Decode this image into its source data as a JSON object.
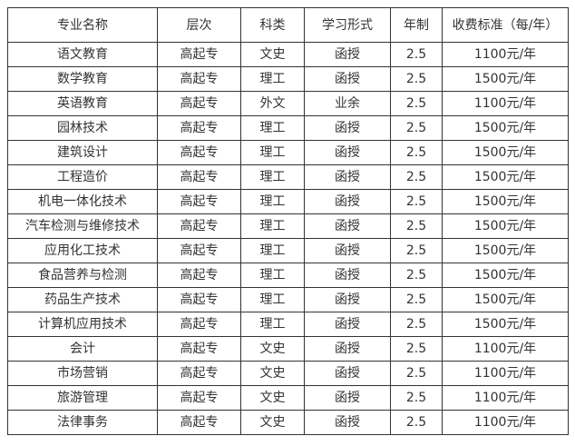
{
  "colors": {
    "border": "#333333",
    "text": "#333333",
    "background": "#ffffff"
  },
  "table": {
    "headers": [
      "专业名称",
      "层次",
      "科类",
      "学习形式",
      "年制",
      "收费标准（每/年）"
    ],
    "rows": [
      [
        "语文教育",
        "高起专",
        "文史",
        "函授",
        "2.5",
        "1100元/年"
      ],
      [
        "数学教育",
        "高起专",
        "理工",
        "函授",
        "2.5",
        "1500元/年"
      ],
      [
        "英语教育",
        "高起专",
        "外文",
        "业余",
        "2.5",
        "1100元/年"
      ],
      [
        "园林技术",
        "高起专",
        "理工",
        "函授",
        "2.5",
        "1500元/年"
      ],
      [
        "建筑设计",
        "高起专",
        "理工",
        "函授",
        "2.5",
        "1500元/年"
      ],
      [
        "工程造价",
        "高起专",
        "理工",
        "函授",
        "2.5",
        "1500元/年"
      ],
      [
        "机电一体化技术",
        "高起专",
        "理工",
        "函授",
        "2.5",
        "1500元/年"
      ],
      [
        "汽车检测与维修技术",
        "高起专",
        "理工",
        "函授",
        "2.5",
        "1500元/年"
      ],
      [
        "应用化工技术",
        "高起专",
        "理工",
        "函授",
        "2.5",
        "1500元/年"
      ],
      [
        "食品营养与检测",
        "高起专",
        "理工",
        "函授",
        "2.5",
        "1500元/年"
      ],
      [
        "药品生产技术",
        "高起专",
        "理工",
        "函授",
        "2.5",
        "1500元/年"
      ],
      [
        "计算机应用技术",
        "高起专",
        "理工",
        "函授",
        "2.5",
        "1500元/年"
      ],
      [
        "会计",
        "高起专",
        "文史",
        "函授",
        "2.5",
        "1100元/年"
      ],
      [
        "市场营销",
        "高起专",
        "文史",
        "函授",
        "2.5",
        "1100元/年"
      ],
      [
        "旅游管理",
        "高起专",
        "文史",
        "函授",
        "2.5",
        "1100元/年"
      ],
      [
        "法律事务",
        "高起专",
        "文史",
        "函授",
        "2.5",
        "1100元/年"
      ]
    ]
  }
}
